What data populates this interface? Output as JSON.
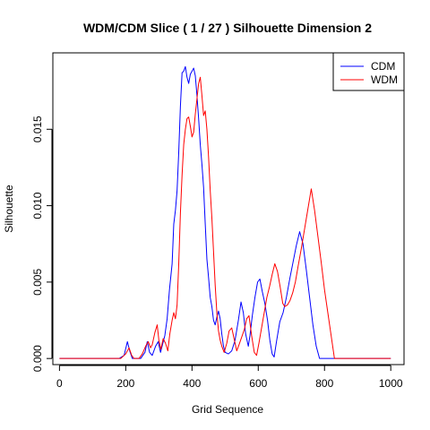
{
  "chart_data": {
    "type": "line",
    "title": "WDM/CDM Slice ( 1 / 27 )  Silhouette Dimension 2",
    "xlabel": "Grid Sequence",
    "ylabel": "Silhouette",
    "xlim": [
      -20,
      1040
    ],
    "ylim": [
      -0.0004,
      0.02
    ],
    "x_ticks": [
      0,
      200,
      400,
      600,
      800,
      1000
    ],
    "y_ticks": [
      0.0,
      0.005,
      0.01,
      0.015
    ],
    "x_tick_labels": [
      "0",
      "200",
      "400",
      "600",
      "800",
      "1000"
    ],
    "y_tick_labels": [
      "0.000",
      "0.005",
      "0.010",
      "0.015"
    ],
    "grid": false,
    "legend_position": "top-right",
    "series": [
      {
        "name": "CDM",
        "color": "#0000ff",
        "points": [
          [
            0,
            0
          ],
          [
            180,
            0
          ],
          [
            195,
            0.0002
          ],
          [
            205,
            0.0011
          ],
          [
            212,
            0.0005
          ],
          [
            220,
            0
          ],
          [
            245,
            0
          ],
          [
            258,
            0.0004
          ],
          [
            265,
            0.0011
          ],
          [
            272,
            0.0004
          ],
          [
            280,
            0.0002
          ],
          [
            290,
            0.0008
          ],
          [
            298,
            0.0011
          ],
          [
            305,
            0.0004
          ],
          [
            312,
            0.001
          ],
          [
            318,
            0.0015
          ],
          [
            325,
            0.0026
          ],
          [
            332,
            0.0045
          ],
          [
            340,
            0.0062
          ],
          [
            345,
            0.0088
          ],
          [
            350,
            0.0097
          ],
          [
            355,
            0.011
          ],
          [
            360,
            0.0135
          ],
          [
            365,
            0.0165
          ],
          [
            370,
            0.0187
          ],
          [
            375,
            0.0188
          ],
          [
            380,
            0.0191
          ],
          [
            385,
            0.0184
          ],
          [
            390,
            0.018
          ],
          [
            395,
            0.0186
          ],
          [
            400,
            0.0188
          ],
          [
            405,
            0.019
          ],
          [
            410,
            0.0185
          ],
          [
            415,
            0.0172
          ],
          [
            420,
            0.0157
          ],
          [
            425,
            0.014
          ],
          [
            430,
            0.0127
          ],
          [
            435,
            0.0112
          ],
          [
            440,
            0.0088
          ],
          [
            445,
            0.0065
          ],
          [
            450,
            0.0053
          ],
          [
            455,
            0.004
          ],
          [
            460,
            0.0034
          ],
          [
            465,
            0.0025
          ],
          [
            470,
            0.0022
          ],
          [
            475,
            0.0027
          ],
          [
            480,
            0.0031
          ],
          [
            485,
            0.0026
          ],
          [
            490,
            0.0016
          ],
          [
            495,
            0.0008
          ],
          [
            500,
            0.0004
          ],
          [
            510,
            0.0003
          ],
          [
            520,
            0.0005
          ],
          [
            530,
            0.0012
          ],
          [
            540,
            0.0025
          ],
          [
            548,
            0.0037
          ],
          [
            555,
            0.003
          ],
          [
            562,
            0.0016
          ],
          [
            570,
            0.0008
          ],
          [
            575,
            0.0015
          ],
          [
            582,
            0.0028
          ],
          [
            590,
            0.004
          ],
          [
            598,
            0.005
          ],
          [
            605,
            0.0052
          ],
          [
            612,
            0.0044
          ],
          [
            620,
            0.0036
          ],
          [
            628,
            0.0025
          ],
          [
            635,
            0.0012
          ],
          [
            642,
            0.0003
          ],
          [
            648,
            0.0001
          ],
          [
            655,
            0.0011
          ],
          [
            665,
            0.0024
          ],
          [
            675,
            0.003
          ],
          [
            685,
            0.004
          ],
          [
            695,
            0.0052
          ],
          [
            705,
            0.0063
          ],
          [
            715,
            0.0074
          ],
          [
            725,
            0.0083
          ],
          [
            735,
            0.0075
          ],
          [
            745,
            0.0058
          ],
          [
            755,
            0.004
          ],
          [
            765,
            0.0022
          ],
          [
            775,
            0.0008
          ],
          [
            785,
            0
          ],
          [
            800,
            0
          ],
          [
            1000,
            0
          ]
        ]
      },
      {
        "name": "WDM",
        "color": "#ff0000",
        "points": [
          [
            0,
            0
          ],
          [
            185,
            0
          ],
          [
            200,
            0.0003
          ],
          [
            210,
            0.0007
          ],
          [
            218,
            0.0002
          ],
          [
            225,
            0
          ],
          [
            240,
            0
          ],
          [
            250,
            0.0003
          ],
          [
            260,
            0.0008
          ],
          [
            268,
            0.0011
          ],
          [
            275,
            0.0007
          ],
          [
            280,
            0.0009
          ],
          [
            288,
            0.0017
          ],
          [
            295,
            0.0022
          ],
          [
            300,
            0.0012
          ],
          [
            306,
            0.0006
          ],
          [
            313,
            0.0013
          ],
          [
            320,
            0.001
          ],
          [
            327,
            0.0005
          ],
          [
            333,
            0.0016
          ],
          [
            340,
            0.0025
          ],
          [
            345,
            0.003
          ],
          [
            350,
            0.0026
          ],
          [
            355,
            0.0035
          ],
          [
            360,
            0.0062
          ],
          [
            365,
            0.0095
          ],
          [
            370,
            0.012
          ],
          [
            375,
            0.014
          ],
          [
            380,
            0.015
          ],
          [
            385,
            0.0157
          ],
          [
            390,
            0.0158
          ],
          [
            395,
            0.0152
          ],
          [
            400,
            0.0145
          ],
          [
            405,
            0.0148
          ],
          [
            410,
            0.016
          ],
          [
            415,
            0.017
          ],
          [
            420,
            0.018
          ],
          [
            425,
            0.0184
          ],
          [
            430,
            0.0172
          ],
          [
            435,
            0.0159
          ],
          [
            440,
            0.0162
          ],
          [
            445,
            0.015
          ],
          [
            450,
            0.0132
          ],
          [
            455,
            0.011
          ],
          [
            460,
            0.0092
          ],
          [
            465,
            0.007
          ],
          [
            470,
            0.0048
          ],
          [
            475,
            0.003
          ],
          [
            480,
            0.0018
          ],
          [
            485,
            0.0012
          ],
          [
            490,
            0.0008
          ],
          [
            497,
            0.0004
          ],
          [
            505,
            0.001
          ],
          [
            512,
            0.0018
          ],
          [
            520,
            0.002
          ],
          [
            528,
            0.0012
          ],
          [
            535,
            0.0005
          ],
          [
            542,
            0.0009
          ],
          [
            550,
            0.0014
          ],
          [
            558,
            0.0019
          ],
          [
            565,
            0.0026
          ],
          [
            572,
            0.0028
          ],
          [
            580,
            0.0015
          ],
          [
            588,
            0.0004
          ],
          [
            595,
            0.0002
          ],
          [
            602,
            0.001
          ],
          [
            610,
            0.002
          ],
          [
            618,
            0.003
          ],
          [
            626,
            0.004
          ],
          [
            634,
            0.0047
          ],
          [
            642,
            0.0055
          ],
          [
            650,
            0.0062
          ],
          [
            658,
            0.0057
          ],
          [
            666,
            0.0047
          ],
          [
            674,
            0.0036
          ],
          [
            680,
            0.0034
          ],
          [
            688,
            0.0035
          ],
          [
            696,
            0.0038
          ],
          [
            704,
            0.0043
          ],
          [
            712,
            0.005
          ],
          [
            720,
            0.006
          ],
          [
            730,
            0.0072
          ],
          [
            740,
            0.0085
          ],
          [
            750,
            0.0098
          ],
          [
            760,
            0.0111
          ],
          [
            770,
            0.0097
          ],
          [
            780,
            0.008
          ],
          [
            790,
            0.0063
          ],
          [
            800,
            0.0045
          ],
          [
            810,
            0.003
          ],
          [
            820,
            0.0015
          ],
          [
            830,
            0
          ],
          [
            840,
            0
          ],
          [
            1000,
            0
          ]
        ]
      }
    ]
  }
}
